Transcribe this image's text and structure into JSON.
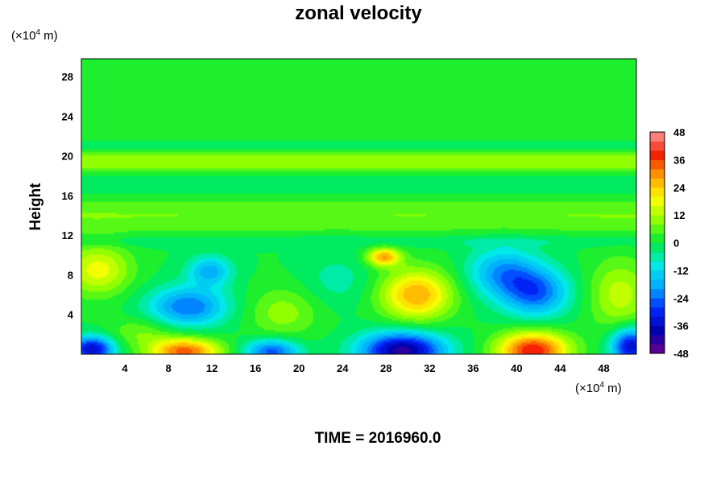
{
  "chart_data": {
    "type": "heatmap",
    "title": "zonal velocity",
    "ylabel": "Height",
    "xlabel": "",
    "x_unit": {
      "prefix": "(×10",
      "exp": "4",
      "suffix": " m)"
    },
    "y_unit": {
      "prefix": "(×10",
      "exp": "4",
      "suffix": " m)"
    },
    "xlim": [
      0,
      51
    ],
    "ylim": [
      0,
      29.8
    ],
    "x_ticks": [
      "4",
      "8",
      "12",
      "16",
      "20",
      "24",
      "28",
      "32",
      "36",
      "40",
      "44",
      "48"
    ],
    "y_ticks": [
      "4",
      "8",
      "12",
      "16",
      "20",
      "24",
      "28"
    ],
    "x_tick_values": [
      4,
      8,
      12,
      16,
      20,
      24,
      28,
      32,
      36,
      40,
      44,
      48
    ],
    "y_tick_values": [
      4,
      8,
      12,
      16,
      20,
      24,
      28
    ],
    "colorbar": {
      "min": -48,
      "max": 48,
      "step": 4,
      "ticks": [
        "48",
        "36",
        "24",
        "12",
        "0",
        "-12",
        "-24",
        "-36",
        "-48"
      ],
      "tick_values": [
        48,
        36,
        24,
        12,
        0,
        -12,
        -24,
        -36,
        -48
      ]
    },
    "features": [
      {
        "x": 1.0,
        "y": 0.5,
        "value": -36,
        "sx": 2.0,
        "sy": 1.3
      },
      {
        "x": 9.5,
        "y": 0.3,
        "value": 34,
        "sx": 3.2,
        "sy": 1.3
      },
      {
        "x": 17.5,
        "y": 0.3,
        "value": -26,
        "sx": 2.5,
        "sy": 1.2
      },
      {
        "x": 29.5,
        "y": 0.4,
        "value": -42,
        "sx": 3.8,
        "sy": 1.8
      },
      {
        "x": 41.5,
        "y": 0.4,
        "value": 40,
        "sx": 3.2,
        "sy": 1.8
      },
      {
        "x": 50.5,
        "y": 0.8,
        "value": -36,
        "sx": 1.8,
        "sy": 1.8
      },
      {
        "x": 1.5,
        "y": 8.5,
        "value": 18,
        "sx": 3.0,
        "sy": 2.5
      },
      {
        "x": 9.8,
        "y": 4.8,
        "value": -24,
        "sx": 3.6,
        "sy": 2.0
      },
      {
        "x": 11.8,
        "y": 8.4,
        "value": -18,
        "sx": 2.0,
        "sy": 1.5
      },
      {
        "x": 18.5,
        "y": 4.2,
        "value": 10,
        "sx": 3.2,
        "sy": 2.5
      },
      {
        "x": 23.5,
        "y": 7.5,
        "value": -6,
        "sx": 3.0,
        "sy": 2.5
      },
      {
        "x": 30.8,
        "y": 6.0,
        "value": 28,
        "sx": 3.2,
        "sy": 2.5
      },
      {
        "x": 27.8,
        "y": 9.8,
        "value": 28,
        "sx": 1.5,
        "sy": 0.9
      },
      {
        "x": 38.8,
        "y": 8.2,
        "value": -20,
        "sx": 3.2,
        "sy": 2.5
      },
      {
        "x": 41.8,
        "y": 6.2,
        "value": -24,
        "sx": 3.0,
        "sy": 2.4
      },
      {
        "x": 49.5,
        "y": 6.0,
        "value": 14,
        "sx": 2.8,
        "sy": 3.5
      },
      {
        "x": 5.5,
        "y": 2.2,
        "value": 8,
        "sx": 3.0,
        "sy": 1.5
      }
    ],
    "bands": [
      {
        "y": 19.4,
        "value": 12,
        "sy": 1.0
      },
      {
        "y": 14.0,
        "value": 8,
        "sy": 1.8
      },
      {
        "y": 17.2,
        "value": -4,
        "sy": 1.0
      },
      {
        "y": 21.0,
        "value": -4,
        "sy": 0.5
      },
      {
        "y": 11.4,
        "value": -4,
        "sy": 0.6
      },
      {
        "y": 22.2,
        "value": 4,
        "sy": 0.5
      }
    ]
  },
  "footer": {
    "time_label": "TIME = 2016960.0"
  }
}
